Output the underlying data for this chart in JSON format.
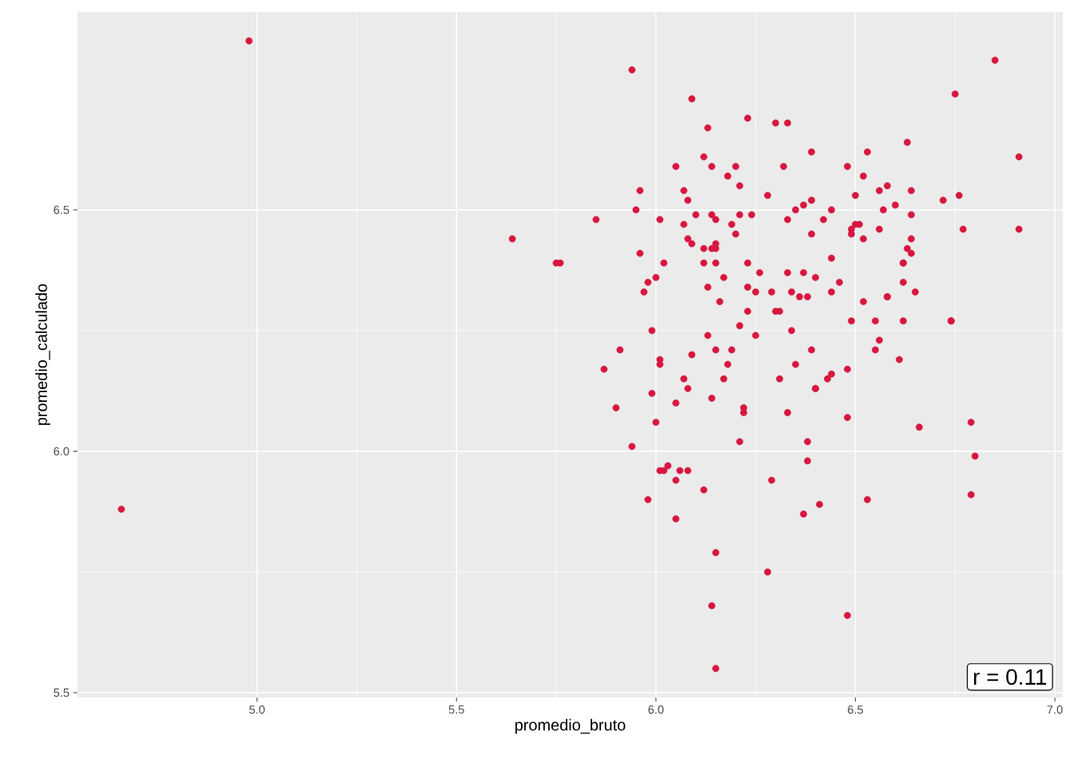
{
  "chart_data": {
    "type": "scatter",
    "xlabel": "promedio_bruto",
    "ylabel": "promedio_calculado",
    "color": "#d7173f",
    "marker": "circle",
    "grid": true,
    "xlim": [
      4.55,
      7.02
    ],
    "ylim": [
      5.49,
      6.91
    ],
    "xticks": [
      {
        "value": 5,
        "label": "5.0"
      },
      5.5,
      {
        "value": 6,
        "label": "6.0"
      },
      6.5,
      {
        "value": 7,
        "label": "7.0"
      }
    ],
    "yticks": [
      5.5,
      {
        "value": 6,
        "label": "6.0"
      },
      6.5
    ],
    "annotations": [
      "r = 0.11"
    ],
    "x": [
      4.98,
      4.66,
      5.94,
      5.64,
      5.75,
      5.76,
      5.85,
      5.95,
      5.96,
      5.96,
      5.97,
      5.98,
      6.0,
      5.87,
      5.91,
      5.9,
      5.99,
      5.99,
      5.94,
      6.0,
      5.98,
      6.01,
      6.02,
      6.03,
      6.01,
      6.01,
      6.05,
      6.05,
      6.05,
      6.06,
      6.08,
      6.07,
      6.08,
      6.12,
      6.09,
      6.01,
      6.02,
      6.05,
      6.07,
      6.08,
      6.07,
      6.08,
      6.09,
      6.1,
      6.09,
      6.12,
      6.12,
      6.12,
      6.13,
      6.13,
      6.14,
      6.14,
      6.15,
      6.15,
      6.15,
      6.14,
      6.15,
      6.16,
      6.17,
      6.13,
      6.14,
      6.15,
      6.17,
      6.18,
      6.19,
      6.19,
      6.2,
      6.18,
      6.2,
      6.21,
      6.21,
      6.23,
      6.24,
      6.23,
      6.23,
      6.23,
      6.21,
      6.22,
      6.22,
      6.21,
      6.26,
      6.25,
      6.25,
      6.28,
      6.3,
      6.32,
      6.33,
      6.33,
      6.29,
      6.3,
      6.31,
      6.31,
      6.34,
      6.33,
      6.33,
      6.29,
      6.28,
      6.34,
      6.35,
      6.37,
      6.39,
      6.39,
      6.37,
      6.36,
      6.38,
      6.4,
      6.39,
      6.35,
      6.39,
      6.4,
      6.4,
      6.38,
      6.38,
      6.37,
      6.41,
      6.42,
      6.44,
      6.44,
      6.44,
      6.43,
      6.44,
      6.46,
      6.48,
      6.48,
      6.48,
      6.49,
      6.49,
      6.49,
      6.5,
      6.5,
      6.51,
      6.52,
      6.52,
      6.52,
      6.53,
      6.53,
      6.48,
      6.55,
      6.56,
      6.55,
      6.56,
      6.56,
      6.57,
      6.58,
      6.58,
      6.58,
      6.6,
      6.62,
      6.62,
      6.62,
      6.61,
      6.62,
      6.63,
      6.63,
      6.64,
      6.64,
      6.64,
      6.64,
      6.65,
      6.66,
      6.72,
      6.74,
      6.74,
      6.75,
      6.76,
      6.77,
      6.79,
      6.8,
      6.79,
      6.85,
      6.91,
      6.91,
      6.15,
      6.14,
      6.15
    ],
    "values": [
      6.85,
      5.88,
      6.79,
      6.44,
      6.39,
      6.39,
      6.48,
      6.5,
      6.54,
      6.41,
      6.33,
      6.35,
      6.36,
      6.17,
      6.21,
      6.09,
      6.25,
      6.12,
      6.01,
      6.06,
      5.9,
      5.96,
      5.96,
      5.97,
      6.18,
      6.19,
      6.1,
      5.94,
      5.86,
      5.96,
      5.96,
      6.15,
      6.13,
      5.92,
      6.2,
      6.48,
      6.39,
      6.59,
      6.54,
      6.52,
      6.47,
      6.44,
      6.43,
      6.49,
      6.73,
      6.42,
      6.39,
      6.61,
      6.67,
      6.34,
      6.49,
      6.59,
      6.42,
      6.43,
      6.48,
      6.42,
      6.39,
      6.31,
      6.36,
      6.24,
      6.11,
      6.21,
      6.15,
      6.18,
      6.21,
      6.47,
      6.45,
      6.57,
      6.59,
      6.55,
      6.49,
      6.69,
      6.49,
      6.39,
      6.34,
      6.29,
      6.26,
      6.09,
      6.08,
      6.02,
      6.37,
      6.33,
      6.24,
      6.53,
      6.68,
      6.59,
      6.68,
      6.48,
      6.33,
      6.29,
      6.29,
      6.15,
      6.25,
      6.37,
      6.08,
      5.94,
      5.75,
      6.33,
      6.5,
      6.51,
      6.52,
      6.62,
      6.37,
      6.32,
      6.32,
      6.36,
      6.45,
      6.18,
      6.21,
      6.13,
      6.13,
      6.02,
      5.98,
      5.87,
      5.89,
      6.48,
      6.5,
      6.4,
      6.33,
      6.15,
      6.16,
      6.35,
      6.59,
      6.17,
      6.07,
      6.46,
      6.45,
      6.27,
      6.53,
      6.47,
      6.47,
      6.44,
      6.57,
      6.31,
      6.62,
      5.9,
      5.66,
      6.27,
      6.23,
      6.21,
      6.46,
      6.54,
      6.5,
      6.55,
      6.32,
      6.32,
      6.51,
      6.39,
      6.39,
      6.27,
      6.19,
      6.35,
      6.42,
      6.64,
      6.54,
      6.44,
      6.41,
      6.49,
      6.33,
      6.05,
      6.52,
      6.27,
      6.27,
      6.74,
      6.53,
      6.46,
      6.06,
      5.99,
      5.91,
      6.81,
      6.61,
      6.46,
      5.79,
      5.68,
      5.55
    ]
  }
}
